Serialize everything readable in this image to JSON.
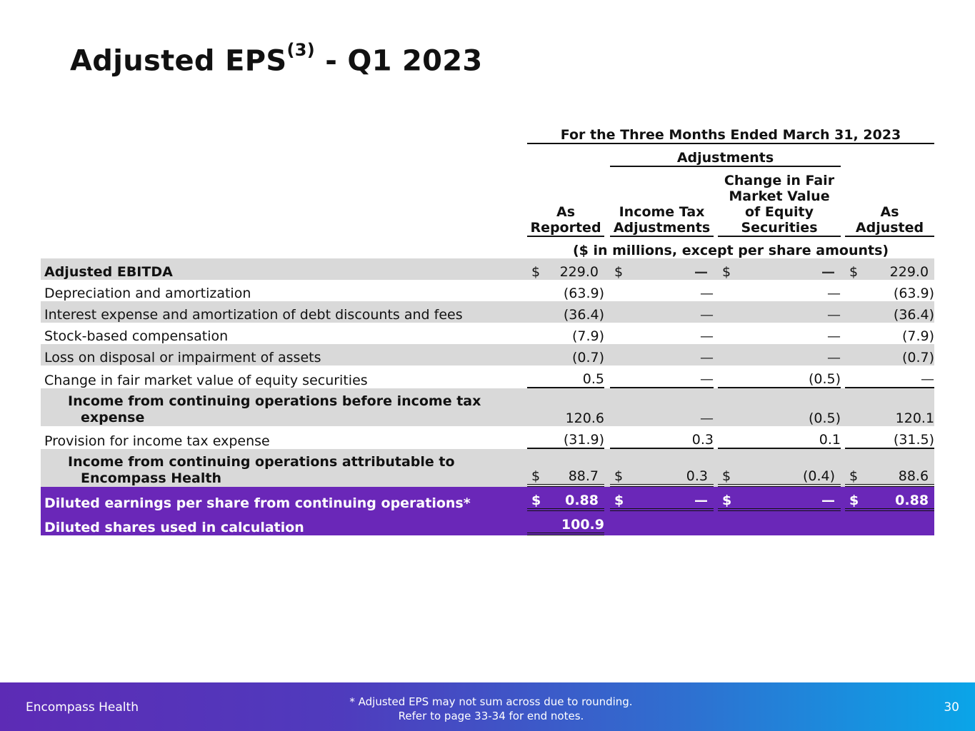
{
  "title": {
    "main": "Adjusted EPS",
    "sup": "(3)",
    "suffix": " - Q1 2023"
  },
  "table": {
    "period": "For the Three Months Ended March 31, 2023",
    "adjustments_label": "Adjustments",
    "columns": {
      "as_reported_1": "As",
      "as_reported_2": "Reported",
      "income_tax_1": "Income Tax",
      "income_tax_2": "Adjustments",
      "fmv_1": "Change in Fair",
      "fmv_2": "Market Value",
      "fmv_3": "of Equity",
      "fmv_4": "Securities",
      "as_adjusted_1": "As",
      "as_adjusted_2": "Adjusted"
    },
    "units": "($ in millions, except per share amounts)",
    "currency": "$",
    "dash": "—",
    "rows": [
      {
        "label": "Adjusted EBITDA",
        "reported": "229.0",
        "tax": "—",
        "fmv": "—",
        "adjusted": "229.0"
      },
      {
        "label": "Depreciation and amortization",
        "reported": "(63.9)",
        "tax": "—",
        "fmv": "—",
        "adjusted": "(63.9)"
      },
      {
        "label": "Interest expense and amortization of debt discounts and fees",
        "reported": "(36.4)",
        "tax": "—",
        "fmv": "—",
        "adjusted": "(36.4)"
      },
      {
        "label": "Stock-based compensation",
        "reported": "(7.9)",
        "tax": "—",
        "fmv": "—",
        "adjusted": "(7.9)"
      },
      {
        "label": "Loss on disposal or impairment of assets",
        "reported": "(0.7)",
        "tax": "—",
        "fmv": "—",
        "adjusted": "(0.7)"
      },
      {
        "label": "Change in fair market value of equity securities",
        "reported": "0.5",
        "tax": "—",
        "fmv": "(0.5)",
        "adjusted": "—"
      },
      {
        "label_1": "Income from continuing operations before income tax",
        "label_2": "expense",
        "reported": "120.6",
        "tax": "—",
        "fmv": "(0.5)",
        "adjusted": "120.1"
      },
      {
        "label": "Provision for income tax expense",
        "reported": "(31.9)",
        "tax": "0.3",
        "fmv": "0.1",
        "adjusted": "(31.5)"
      },
      {
        "label_1": "Income from continuing operations attributable to",
        "label_2": "Encompass Health",
        "reported": "88.7",
        "tax": "0.3",
        "fmv": "(0.4)",
        "adjusted": "88.6"
      },
      {
        "label": "Diluted earnings per share from continuing operations*",
        "reported": "0.88",
        "tax": "—",
        "fmv": "—",
        "adjusted": "0.88"
      },
      {
        "label": "Diluted shares used in calculation",
        "reported": "100.9"
      }
    ]
  },
  "footer": {
    "brand": "Encompass Health",
    "note_1": "*  Adjusted EPS may not sum across due to rounding.",
    "note_2": "Refer to page 33-34 for end notes.",
    "page": "30"
  }
}
